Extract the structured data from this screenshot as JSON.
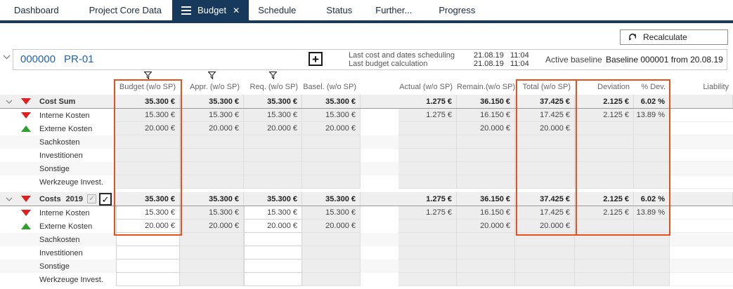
{
  "colors": {
    "accent_orange": "#e8501e",
    "navy": "#17395c",
    "link_blue": "#2363a8",
    "negative_red": "#e01f1f",
    "positive_green": "#2da12d"
  },
  "icons": {
    "close": "✕",
    "plus": "+",
    "check": "✓"
  },
  "tabs": [
    {
      "label": "Dashboard",
      "active": false
    },
    {
      "label": "Project Core Data",
      "active": false
    },
    {
      "label": "Budget",
      "active": true
    },
    {
      "label": "Schedule",
      "active": false
    },
    {
      "label": "Status",
      "active": false
    },
    {
      "label": "Further...",
      "active": false
    },
    {
      "label": "Progress",
      "active": false
    }
  ],
  "toolbar": {
    "recalculate_label": "Recalculate"
  },
  "project": {
    "id": "000000",
    "code": "PR-01",
    "info_rows": [
      {
        "label": "Last cost and dates scheduling",
        "datetime": "21.08.19   11:04"
      },
      {
        "label": "Last budget calculation",
        "datetime": "21.08.19   11:04"
      }
    ],
    "active_baseline_label": "Active baseline",
    "baseline_value": "Baseline 000001 from 20.08.19"
  },
  "table": {
    "columns": [
      "Budget (w/o SP)",
      "Appr. (w/o SP)",
      "Req. (w/o SP)",
      "Basel. (w/o SP)",
      "Actual (w/o SP)",
      "Remain.(w/o SP)",
      "Total (w/o SP)",
      "Deviation",
      "% Dev.",
      "Liability"
    ],
    "filtered_columns": [
      "Budget (w/o SP)",
      "Appr. (w/o SP)",
      "Req. (w/o SP)"
    ],
    "highlighted_columns": [
      "Budget (w/o SP)",
      "Total (w/o SP)",
      "Deviation",
      "% Dev."
    ],
    "groups": [
      {
        "header": {
          "label": "Cost Sum",
          "trend": "down",
          "cells": [
            "35.300 €",
            "35.300 €",
            "35.300 €",
            "35.300 €",
            "1.275 €",
            "36.150 €",
            "37.425 €",
            "2.125 €",
            "6.02 %",
            ""
          ]
        },
        "rows": [
          {
            "label": "Interne Kosten",
            "trend": "down",
            "cells": [
              "15.300 €",
              "15.300 €",
              "15.300 €",
              "15.300 €",
              "1.275 €",
              "16.150 €",
              "17.425 €",
              "2.125 €",
              "13.89 %",
              ""
            ]
          },
          {
            "label": "Externe Kosten",
            "trend": "up",
            "cells": [
              "20.000 €",
              "20.000 €",
              "20.000 €",
              "20.000 €",
              "",
              "20.000 €",
              "20.000 €",
              "",
              "",
              ""
            ]
          },
          {
            "label": "Sachkosten",
            "trend": "",
            "cells": [
              "",
              "",
              "",
              "",
              "",
              "",
              "",
              "",
              "",
              ""
            ]
          },
          {
            "label": "Investitionen",
            "trend": "",
            "cells": [
              "",
              "",
              "",
              "",
              "",
              "",
              "",
              "",
              "",
              ""
            ]
          },
          {
            "label": "Sonstige",
            "trend": "",
            "cells": [
              "",
              "",
              "",
              "",
              "",
              "",
              "",
              "",
              "",
              ""
            ]
          },
          {
            "label": "Werkzeuge Invest.",
            "trend": "",
            "cells": [
              "",
              "",
              "",
              "",
              "",
              "",
              "",
              "",
              "",
              ""
            ]
          }
        ]
      },
      {
        "header": {
          "label": "Costs",
          "year": "2019",
          "trend": "down",
          "checkbox_small_checked": true,
          "checkbox_big_checked": true,
          "cells": [
            "35.300 €",
            "35.300 €",
            "35.300 €",
            "35.300 €",
            "1.275 €",
            "36.150 €",
            "37.425 €",
            "2.125 €",
            "6.02 %",
            ""
          ]
        },
        "rows": [
          {
            "label": "Interne Kosten",
            "trend": "down",
            "cells": [
              "15.300 €",
              "15.300 €",
              "15.300 €",
              "15.300 €",
              "1.275 €",
              "16.150 €",
              "17.425 €",
              "2.125 €",
              "13.89 %",
              ""
            ]
          },
          {
            "label": "Externe Kosten",
            "trend": "up",
            "cells": [
              "20.000 €",
              "20.000 €",
              "20.000 €",
              "20.000 €",
              "",
              "20.000 €",
              "20.000 €",
              "",
              "",
              ""
            ]
          },
          {
            "label": "Sachkosten",
            "trend": "",
            "cells": [
              "",
              "",
              "",
              "",
              "",
              "",
              "",
              "",
              "",
              ""
            ]
          },
          {
            "label": "Investitionen",
            "trend": "",
            "cells": [
              "",
              "",
              "",
              "",
              "",
              "",
              "",
              "",
              "",
              ""
            ]
          },
          {
            "label": "Sonstige",
            "trend": "",
            "cells": [
              "",
              "",
              "",
              "",
              "",
              "",
              "",
              "",
              "",
              ""
            ]
          },
          {
            "label": "Werkzeuge Invest.",
            "trend": "",
            "cells": [
              "",
              "",
              "",
              "",
              "",
              "",
              "",
              "",
              "",
              ""
            ]
          }
        ]
      }
    ]
  }
}
